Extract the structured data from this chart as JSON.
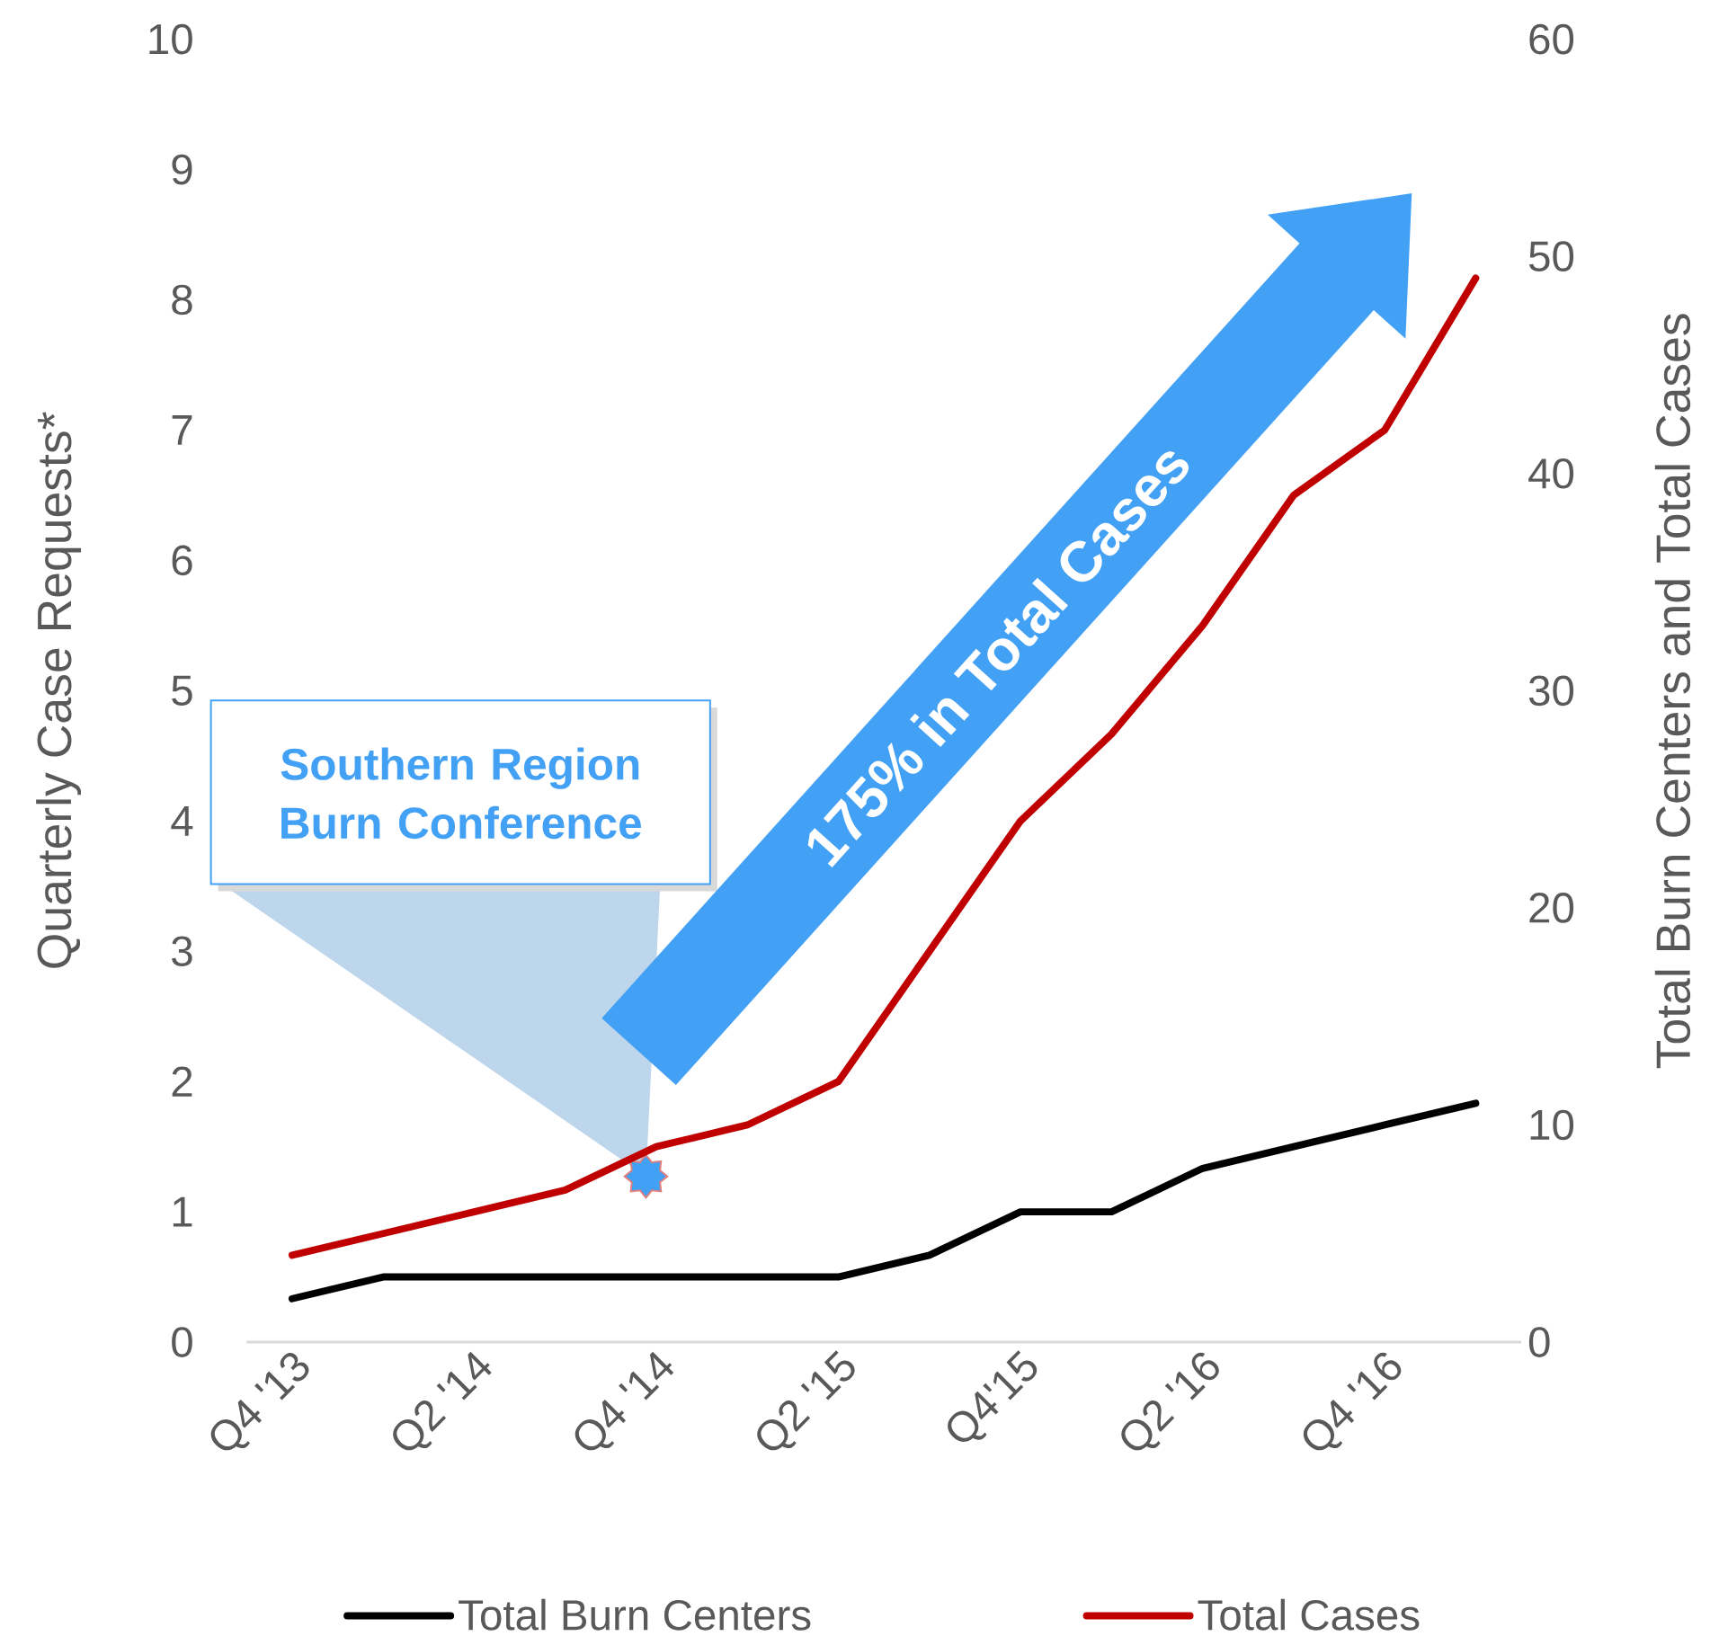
{
  "chart_data": {
    "type": "line",
    "categories": [
      "Q4 '13",
      null,
      "Q2 '14",
      null,
      "Q4 '14",
      null,
      "Q2 '15",
      null,
      "Q4'15",
      null,
      "Q2 '16",
      null,
      "Q4 '16",
      null
    ],
    "series": [
      {
        "name": "Total Burn Centers",
        "color": "#000000",
        "axis": "y2",
        "values": [
          2,
          3,
          3,
          3,
          3,
          3,
          3,
          4,
          6,
          6,
          8,
          9,
          10,
          11
        ]
      },
      {
        "name": "Total Cases",
        "color": "#c00000",
        "axis": "y2",
        "values": [
          4,
          5,
          6,
          7,
          9,
          10,
          12,
          18,
          24,
          28,
          33,
          39,
          42,
          49
        ]
      }
    ],
    "ylabel": "Quarterly Case Requests*",
    "y2label": "Total Burn Centers and Total Cases",
    "ylim": [
      0,
      10
    ],
    "yticks": [
      0,
      1,
      2,
      3,
      4,
      5,
      6,
      7,
      8,
      9,
      10
    ],
    "y2lim": [
      0,
      60
    ],
    "y2ticks": [
      0,
      10,
      20,
      30,
      40,
      50,
      60
    ],
    "marker": "none",
    "line_style": "solid",
    "legend": "bottom",
    "annotations": [
      "Southern Region Burn Conference",
      "175% in Total Cases"
    ]
  }
}
